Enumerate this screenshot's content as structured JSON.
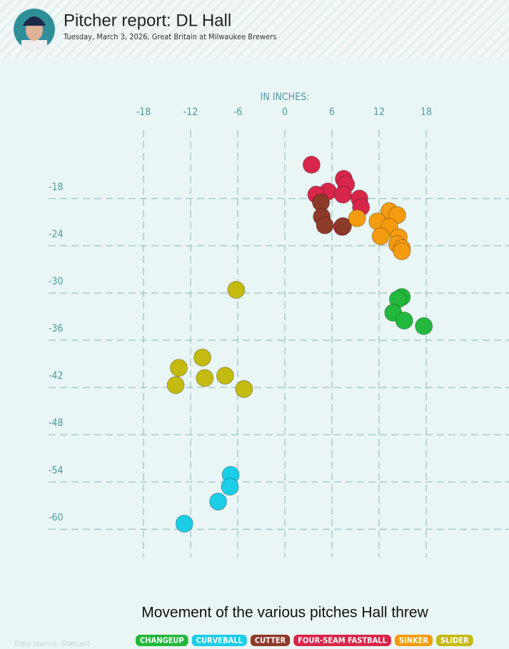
{
  "header": {
    "title": "Pitcher report: DL Hall",
    "subtitle": "Tuesday, March 3, 2026, Great Britain at Milwaukee Brewers"
  },
  "chart_data": {
    "type": "scatter",
    "title": "Movement of the various pitches Hall threw",
    "x_label": "IN INCHES:",
    "xlim": [
      -18,
      18
    ],
    "xticks": [
      -18,
      -12,
      -6,
      0,
      6,
      12,
      18
    ],
    "ylim": [
      -63.6,
      -9.3
    ],
    "yticks": [
      -18,
      -24,
      -30,
      -36,
      -42,
      -48,
      -54,
      -60
    ],
    "grid": true,
    "series": [
      {
        "name": "FOUR-SEAM FASTBALL",
        "color": "#d7264a",
        "x": [
          3.4,
          7.5,
          7.8,
          5.5,
          4.0,
          7.4,
          9.5,
          9.7,
          7.3
        ],
        "values": [
          -13.7,
          -15.5,
          -16.2,
          -17.1,
          -17.5,
          -17.5,
          -18.0,
          -19.1,
          -21.6
        ]
      },
      {
        "name": "CUTTER",
        "color": "#8d3a28",
        "x": [
          4.6,
          4.7,
          5.1,
          7.4
        ],
        "values": [
          -18.5,
          -20.3,
          -21.4,
          -21.5
        ]
      },
      {
        "name": "SINKER",
        "color": "#f59b0f",
        "x": [
          9.2,
          13.3,
          14.3,
          11.8,
          13.3,
          12.2,
          14.5,
          14.3,
          14.9,
          14.9
        ],
        "values": [
          -20.5,
          -19.6,
          -20.1,
          -20.9,
          -21.6,
          -22.8,
          -22.9,
          -23.8,
          -24.3,
          -24.7
        ]
      },
      {
        "name": "CHANGEUP",
        "color": "#22b83c",
        "x": [
          14.9,
          14.4,
          13.8,
          15.2,
          17.7
        ],
        "values": [
          -30.5,
          -30.8,
          -32.5,
          -33.5,
          -34.2
        ]
      },
      {
        "name": "SLIDER",
        "color": "#c4ba10",
        "x": [
          -6.2,
          -10.5,
          -13.5,
          -10.2,
          -7.6,
          -13.9,
          -5.2
        ],
        "values": [
          -29.6,
          -38.2,
          -39.5,
          -40.8,
          -40.5,
          -41.7,
          -42.2
        ]
      },
      {
        "name": "CURVEBALL",
        "color": "#1ccde8",
        "x": [
          -6.9,
          -7.0,
          -8.5,
          -12.8
        ],
        "values": [
          -53.1,
          -54.6,
          -56.5,
          -59.3
        ]
      }
    ],
    "legend_order": [
      "CHANGEUP",
      "CURVEBALL",
      "CUTTER",
      "FOUR-SEAM FASTBALL",
      "SINKER",
      "SLIDER"
    ],
    "source": "Data source: Statcast"
  }
}
